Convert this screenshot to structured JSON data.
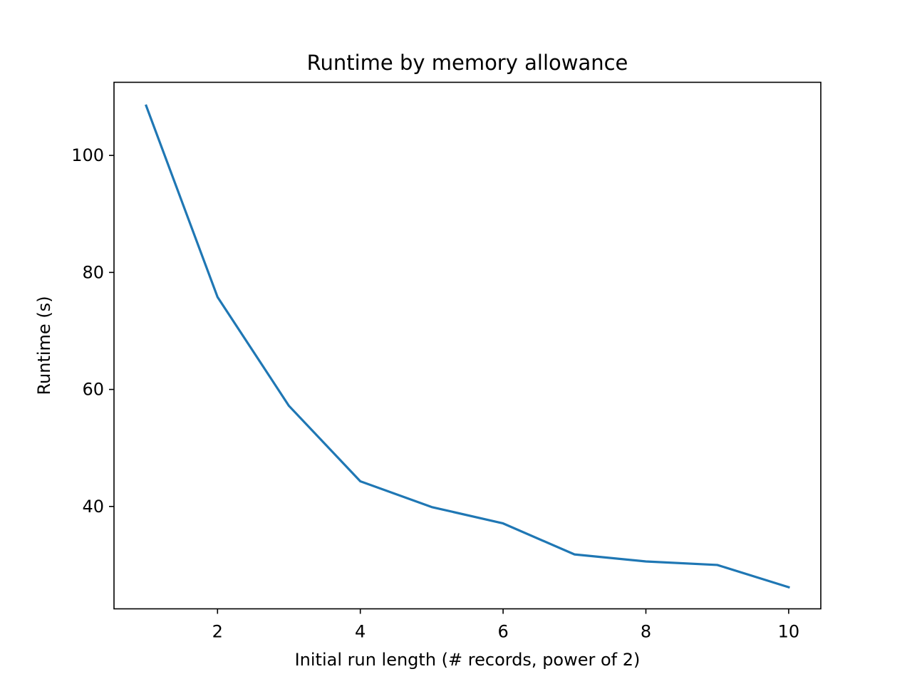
{
  "chart_data": {
    "type": "line",
    "title": "Runtime by memory allowance",
    "xlabel": "Initial run length (# records, power of 2)",
    "ylabel": "Runtime (s)",
    "xlim": [
      0.55,
      10.45
    ],
    "ylim": [
      22.5,
      112.5
    ],
    "xticks": [
      2,
      4,
      6,
      8,
      10
    ],
    "yticks": [
      40,
      60,
      80,
      100
    ],
    "grid": false,
    "series": [
      {
        "name": "",
        "color": "#1f77b4",
        "x": [
          1,
          2,
          3,
          4,
          5,
          6,
          7,
          8,
          9,
          10
        ],
        "y": [
          108.5,
          75.8,
          57.2,
          44.3,
          39.9,
          37.1,
          31.8,
          30.6,
          30.0,
          26.2
        ]
      }
    ]
  }
}
